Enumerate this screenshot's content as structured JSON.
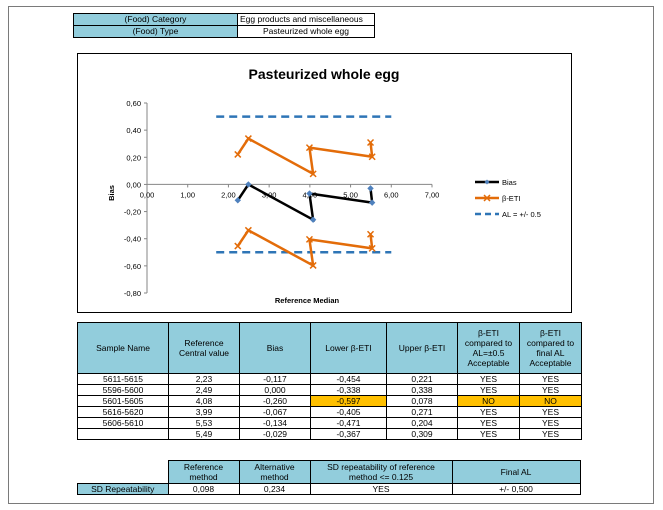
{
  "meta": {
    "category_label": "(Food) Category",
    "category_value": "Egg products and miscellaneous",
    "type_label": "(Food) Type",
    "type_value": "Pasteurized whole egg"
  },
  "chart_data": {
    "type": "line",
    "title": "Pasteurized whole egg",
    "xlabel": "Reference Median",
    "ylabel": "Bias",
    "xlim": [
      0,
      7
    ],
    "ylim": [
      -0.8,
      0.6
    ],
    "x_ticks": [
      "0,00",
      "1,00",
      "2,00",
      "3,00",
      "4,00",
      "5,00",
      "6,00",
      "7,00"
    ],
    "y_ticks": [
      "0,60",
      "0,40",
      "0,20",
      "0,00",
      "-0,20",
      "-0,40",
      "-0,60",
      "-0,80"
    ],
    "legend_position": "right",
    "grid": false,
    "series": [
      {
        "name": "Bias",
        "color": "#000000",
        "marker": "diamond",
        "x": [
          2.23,
          2.49,
          4.08,
          3.99,
          5.53,
          5.49
        ],
        "y": [
          -0.117,
          0.0,
          -0.26,
          -0.067,
          -0.134,
          -0.029
        ]
      },
      {
        "name": "β-ETI",
        "color": "#e36c09",
        "marker": "x",
        "upper": {
          "x": [
            2.23,
            2.49,
            4.08,
            3.99,
            5.53,
            5.49
          ],
          "y": [
            0.221,
            0.338,
            0.078,
            0.271,
            0.204,
            0.309
          ]
        },
        "lower": {
          "x": [
            2.23,
            2.49,
            4.08,
            3.99,
            5.53,
            5.49
          ],
          "y": [
            -0.454,
            -0.338,
            -0.597,
            -0.405,
            -0.471,
            -0.367
          ]
        }
      },
      {
        "name": "AL = +/- 0.5",
        "color": "#2e75b6",
        "style": "dashed",
        "x": [
          1.7,
          6.0
        ],
        "upper_y": 0.5,
        "lower_y": -0.5
      }
    ]
  },
  "samples": {
    "headers": [
      "Sample Name",
      "Reference Central value",
      "Bias",
      "Lower β-ETI",
      "Upper β-ETI",
      "β-ETI compared to AL=±0.5 Acceptable",
      "β-ETI compared to final AL Acceptable"
    ],
    "rows": [
      [
        "5611-5615",
        "2,23",
        "-0,117",
        "-0,454",
        "0,221",
        "YES",
        "YES"
      ],
      [
        "5596-5600",
        "2,49",
        "0,000",
        "-0,338",
        "0,338",
        "YES",
        "YES"
      ],
      [
        "5601-5605",
        "4,08",
        "-0,260",
        "-0,597",
        "0,078",
        "NO",
        "NO"
      ],
      [
        "5616-5620",
        "3,99",
        "-0,067",
        "-0,405",
        "0,271",
        "YES",
        "YES"
      ],
      [
        "5606-5610",
        "5,53",
        "-0,134",
        "-0,471",
        "0,204",
        "YES",
        "YES"
      ],
      [
        "",
        "5,49",
        "-0,029",
        "-0,367",
        "0,309",
        "YES",
        "YES"
      ]
    ],
    "highlight_color": "#ffc000"
  },
  "footer": {
    "headers": [
      "Reference method",
      "Alternative method",
      "SD repeatability of reference method <= 0.125",
      "Final AL"
    ],
    "row_label": "SD Repeatability",
    "values": [
      "0,098",
      "0,234",
      "YES",
      "+/- 0,500"
    ]
  }
}
